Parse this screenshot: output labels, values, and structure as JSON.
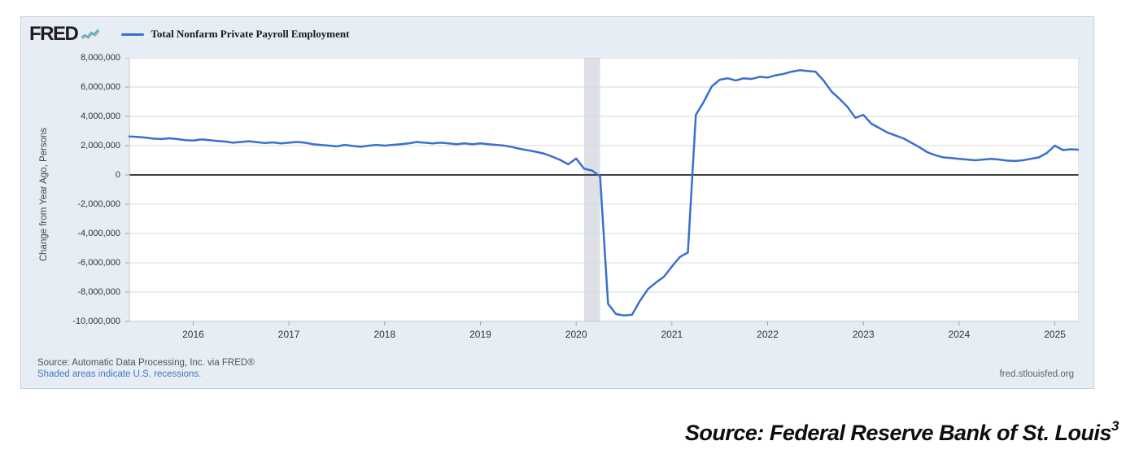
{
  "header": {
    "logo_text": "FRED",
    "legend_label": "Total Nonfarm Private Payroll Employment"
  },
  "footer": {
    "source_line": "Source: Automatic Data Processing, Inc. via FRED®",
    "recession_note": "Shaded areas indicate U.S. recessions.",
    "site_link": "fred.stlouisfed.org"
  },
  "caption": {
    "text": "Source: Federal Reserve Bank of St. Louis",
    "superscript": "3"
  },
  "colors": {
    "widget_bg": "#e7edf4",
    "plot_bg": "#ffffff",
    "line": "#3a6fd0",
    "grid": "#d5d8db",
    "plot_border": "#bfc6cc",
    "zero_line": "#404040",
    "recession_band": "#dde1e5",
    "link_blue": "#4477bb"
  },
  "chart_data": {
    "type": "line",
    "title": "",
    "xlabel": "",
    "ylabel": "Change from Year Ago, Persons",
    "legend_position": "top-left",
    "grid": "horizontal",
    "ylim": [
      -10000000,
      8000000
    ],
    "y_tick_step": 2000000,
    "y_tick_labels": [
      "8,000,000",
      "6,000,000",
      "4,000,000",
      "2,000,000",
      "0",
      "-2,000,000",
      "-4,000,000",
      "-6,000,000",
      "-8,000,000",
      "-10,000,000"
    ],
    "x_tick_years": [
      2016,
      2017,
      2018,
      2019,
      2020,
      2021,
      2022,
      2023,
      2024,
      2025
    ],
    "xlim_year_frac": [
      2015.3333,
      2025.25
    ],
    "recession_bands": [
      {
        "start_year_frac": 2020.0833,
        "end_year_frac": 2020.25
      }
    ],
    "series": [
      {
        "name": "Total Nonfarm Private Payroll Employment",
        "frequency": "monthly",
        "start": "2015-05",
        "values": [
          2620000,
          2600000,
          2550000,
          2480000,
          2450000,
          2500000,
          2450000,
          2380000,
          2350000,
          2420000,
          2380000,
          2320000,
          2280000,
          2200000,
          2250000,
          2300000,
          2240000,
          2180000,
          2220000,
          2150000,
          2200000,
          2250000,
          2200000,
          2100000,
          2050000,
          2000000,
          1950000,
          2050000,
          1980000,
          1920000,
          2000000,
          2050000,
          2000000,
          2050000,
          2100000,
          2150000,
          2250000,
          2200000,
          2150000,
          2200000,
          2150000,
          2100000,
          2150000,
          2100000,
          2150000,
          2100000,
          2050000,
          2000000,
          1900000,
          1780000,
          1680000,
          1580000,
          1450000,
          1250000,
          1020000,
          720000,
          1120000,
          420000,
          300000,
          -100000,
          -8800000,
          -9500000,
          -9600000,
          -9550000,
          -8600000,
          -7800000,
          -7350000,
          -6950000,
          -6250000,
          -5600000,
          -5300000,
          4100000,
          5000000,
          6050000,
          6500000,
          6600000,
          6450000,
          6600000,
          6550000,
          6700000,
          6650000,
          6800000,
          6900000,
          7050000,
          7150000,
          7100000,
          7050000,
          6450000,
          5700000,
          5200000,
          4650000,
          3900000,
          4100000,
          3500000,
          3200000,
          2900000,
          2700000,
          2500000,
          2200000,
          1900000,
          1550000,
          1350000,
          1200000,
          1150000,
          1100000,
          1050000,
          1000000,
          1050000,
          1100000,
          1050000,
          980000,
          950000,
          1000000,
          1100000,
          1200000,
          1500000,
          2000000,
          1700000,
          1750000,
          1720000
        ]
      }
    ]
  }
}
